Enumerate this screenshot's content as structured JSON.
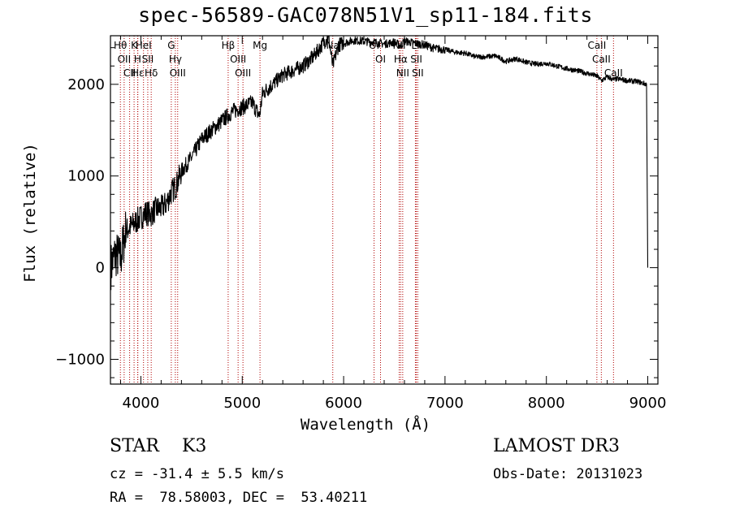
{
  "chart_data": {
    "type": "line",
    "title": "spec-56589-GAC078N51V1_sp11-184.fits",
    "xlabel": "Wavelength (Å)",
    "ylabel": "Flux (relative)",
    "xlim": [
      3700,
      9100
    ],
    "ylim": [
      -1270,
      2530
    ],
    "xticks": [
      4000,
      5000,
      6000,
      7000,
      8000,
      9000
    ],
    "yticks": [
      -1000,
      0,
      1000,
      2000
    ],
    "series": [
      {
        "name": "flux",
        "x": [
          3700,
          3750,
          3800,
          3850,
          3900,
          3950,
          4000,
          4050,
          4100,
          4150,
          4200,
          4250,
          4300,
          4350,
          4400,
          4500,
          4600,
          4700,
          4800,
          4850,
          4900,
          5000,
          5100,
          5170,
          5200,
          5300,
          5400,
          5500,
          5600,
          5700,
          5800,
          5850,
          5893,
          5950,
          6000,
          6100,
          6200,
          6300,
          6400,
          6500,
          6563,
          6600,
          6700,
          6800,
          6900,
          7000,
          7100,
          7200,
          7300,
          7400,
          7500,
          7600,
          7700,
          7800,
          7900,
          8000,
          8100,
          8200,
          8300,
          8400,
          8500,
          8542,
          8600,
          8662,
          8700,
          8800,
          8900,
          8990,
          9000
        ],
        "values": [
          0,
          150,
          100,
          400,
          450,
          500,
          550,
          600,
          580,
          640,
          650,
          700,
          820,
          900,
          1050,
          1200,
          1400,
          1500,
          1600,
          1650,
          1700,
          1750,
          1800,
          1650,
          1900,
          2000,
          2100,
          2150,
          2200,
          2300,
          2450,
          2520,
          2200,
          2430,
          2450,
          2480,
          2470,
          2460,
          2440,
          2460,
          2420,
          2470,
          2450,
          2430,
          2390,
          2380,
          2350,
          2340,
          2300,
          2300,
          2310,
          2250,
          2280,
          2240,
          2220,
          2230,
          2200,
          2170,
          2150,
          2120,
          2090,
          2040,
          2080,
          2050,
          2060,
          2040,
          2030,
          2000,
          0
        ]
      }
    ],
    "line_groups": [
      {
        "wavelengths": [
          3798,
          3835,
          3889
        ],
        "labels": [
          "Hθ",
          "OII",
          "CII"
        ]
      },
      {
        "wavelengths": [
          3933,
          3968,
          3970
        ],
        "labels": [
          "K",
          "H",
          "Hε"
        ]
      },
      {
        "wavelengths": [
          4026,
          4068,
          4102
        ],
        "labels": [
          "HeI",
          "SII",
          "Hδ"
        ]
      },
      {
        "wavelengths": [
          4300,
          4340,
          4363
        ],
        "labels": [
          "G",
          "Hγ",
          "OIII"
        ]
      },
      {
        "wavelengths": [
          4861,
          4959,
          5007
        ],
        "labels": [
          "Hβ",
          "OIII",
          "OIII"
        ]
      },
      {
        "wavelengths": [
          5175
        ],
        "labels": [
          "Mg"
        ]
      },
      {
        "wavelengths": [
          5893
        ],
        "labels": [
          "Na"
        ]
      },
      {
        "wavelengths": [
          6300,
          6364
        ],
        "labels": [
          "OI",
          "OI"
        ]
      },
      {
        "wavelengths": [
          6548,
          6563,
          6583
        ],
        "labels": [
          "NII",
          "Hα",
          "NII"
        ]
      },
      {
        "wavelengths": [
          6708,
          6717,
          6731
        ],
        "labels": [
          "Li",
          "SII",
          "SII"
        ]
      },
      {
        "wavelengths": [
          8498,
          8542,
          8662
        ],
        "labels": [
          "CaII",
          "CaII",
          "CaII"
        ]
      }
    ]
  },
  "info": {
    "class": "STAR    K3",
    "cz": "cz = -31.4 ± 5.5 km/s",
    "radec": "RA =  78.58003, DEC =  53.40211",
    "survey": "LAMOST DR3",
    "obsdate": "Obs-Date: 20131023"
  }
}
